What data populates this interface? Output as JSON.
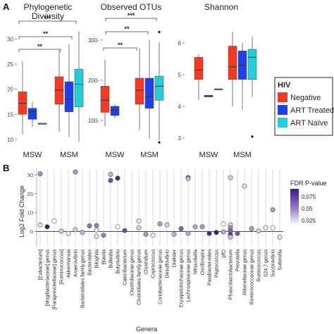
{
  "panel_labels": [
    "A",
    "B"
  ],
  "colors": {
    "negative": "#f43a21",
    "art_treated": "#1f3fe8",
    "art_naive": "#22cfd8",
    "grid": "#dcdcdc",
    "fdr_high": "#3a1a8a",
    "fdr_low": "#ffffff"
  },
  "legend_hiv": {
    "title": "HIV",
    "items": [
      {
        "label": "Negative",
        "color": "#f43a21"
      },
      {
        "label": "ART Treated",
        "color": "#1f3fe8"
      },
      {
        "label": "ART Naïve",
        "color": "#22cfd8"
      }
    ]
  },
  "chart_data": [
    {
      "type": "box",
      "title": "Phylogenetic\nDiversity",
      "categories": [
        "MSW",
        "MSM"
      ],
      "series_names": [
        "Negative",
        "ART Treated",
        "ART Naïve"
      ],
      "ylim": [
        9,
        33
      ],
      "yticks": [
        10,
        15,
        20,
        25,
        30
      ],
      "boxes": [
        {
          "cat": "MSW",
          "series": "Negative",
          "lo": 11,
          "q1": 15,
          "med": 17.2,
          "q3": 19.5,
          "hi": 25.5
        },
        {
          "cat": "MSW",
          "series": "ART Treated",
          "lo": 12.5,
          "q1": 14,
          "med": 15.5,
          "q3": 16.2,
          "hi": 17.5
        },
        {
          "cat": "MSW",
          "series": "ART Naïve",
          "lo": 13.2,
          "q1": 13.2,
          "med": 13.2,
          "q3": 13.2,
          "hi": 13.2
        },
        {
          "cat": "MSM",
          "series": "Negative",
          "lo": 11.5,
          "q1": 17,
          "med": 19.8,
          "q3": 22.5,
          "hi": 28
        },
        {
          "cat": "MSM",
          "series": "ART Treated",
          "lo": 10.5,
          "q1": 15.5,
          "med": 18,
          "q3": 21.5,
          "hi": 29
        },
        {
          "cat": "MSM",
          "series": "ART Naïve",
          "lo": 9.5,
          "q1": 16.5,
          "med": 21,
          "q3": 24,
          "hi": 31.5
        }
      ],
      "outliers": [],
      "annotations": [
        "**",
        "**",
        "***"
      ]
    },
    {
      "type": "box",
      "title": "Observed OTUs",
      "categories": [
        "MSW",
        "MSM"
      ],
      "series_names": [
        "Negative",
        "ART Treated",
        "ART Naïve"
      ],
      "ylim": [
        40,
        340
      ],
      "yticks": [
        100,
        200,
        300
      ],
      "boxes": [
        {
          "cat": "MSW",
          "series": "Negative",
          "lo": 85,
          "q1": 120,
          "med": 150,
          "q3": 185,
          "hi": 250
        },
        {
          "cat": "MSW",
          "series": "ART Treated",
          "lo": 105,
          "q1": 112,
          "med": 125,
          "q3": 135,
          "hi": 140
        },
        {
          "cat": "MSM",
          "series": "Negative",
          "lo": 75,
          "q1": 140,
          "med": 175,
          "q3": 205,
          "hi": 280
        },
        {
          "cat": "MSM",
          "series": "ART Treated",
          "lo": 55,
          "q1": 130,
          "med": 160,
          "q3": 205,
          "hi": 300
        },
        {
          "cat": "MSM",
          "series": "ART Naïve",
          "lo": 50,
          "q1": 150,
          "med": 185,
          "q3": 210,
          "hi": 295
        }
      ],
      "outliers": [
        {
          "cat": "MSM",
          "series": "ART Naïve",
          "value": 320
        },
        {
          "cat": "MSM",
          "series": "ART Naïve",
          "value": 45
        }
      ],
      "annotations": [
        "**",
        "**",
        "***"
      ]
    },
    {
      "type": "box",
      "title": "Shannon",
      "categories": [
        "MSW",
        "MSM"
      ],
      "series_names": [
        "Negative",
        "ART Treated",
        "ART Naïve"
      ],
      "ylim": [
        2.8,
        6.6
      ],
      "yticks": [
        3,
        4,
        5,
        6
      ],
      "boxes": [
        {
          "cat": "MSW",
          "series": "Negative",
          "lo": 4.2,
          "q1": 4.85,
          "med": 5.15,
          "q3": 5.55,
          "hi": 5.65
        },
        {
          "cat": "MSW",
          "series": "ART Treated",
          "lo": 4.3,
          "q1": 4.3,
          "med": 4.32,
          "q3": 4.35,
          "hi": 4.35
        },
        {
          "cat": "MSW",
          "series": "ART Naïve",
          "lo": 4.55,
          "q1": 4.55,
          "med": 4.55,
          "q3": 4.55,
          "hi": 4.55
        },
        {
          "cat": "MSM",
          "series": "Negative",
          "lo": 4.0,
          "q1": 4.85,
          "med": 5.25,
          "q3": 5.9,
          "hi": 6.35
        },
        {
          "cat": "MSM",
          "series": "ART Treated",
          "lo": 3.9,
          "q1": 4.85,
          "med": 5.3,
          "q3": 5.75,
          "hi": 6.0
        },
        {
          "cat": "MSM",
          "series": "ART Naïve",
          "lo": 4.3,
          "q1": 4.85,
          "med": 5.55,
          "q3": 5.8,
          "hi": 6.2
        }
      ],
      "outliers": [
        {
          "cat": "MSM",
          "series": "ART Naïve",
          "value": 3.05
        }
      ],
      "annotations": []
    },
    {
      "type": "scatter",
      "xlabel": "Genera",
      "ylabel": "Log2 Fold Change",
      "ylim": [
        -8,
        33
      ],
      "yticks": [
        0,
        10,
        20,
        30
      ],
      "legend_title": "FDR P-value",
      "legend_ticks": [
        0.075,
        0.05,
        0.025
      ],
      "fdr_range": [
        0.0,
        0.09
      ],
      "categories": [
        "[Eubacterium]",
        "[Mogibacteriaceae].genus",
        "[Paraprevotellaceae].genus",
        "[Ruminococcus]",
        "Akkermansia",
        "Anaerovibrio",
        "Bacteroidales.family.genus",
        "Bacteroides",
        "Bilophila",
        "Blautia",
        "Bulleidia",
        "Butyrivibrio",
        "Catenibacterium",
        "Clostridiaceae.genus",
        "Clostridiales.family.genus",
        "Clostridium",
        "Coprococcus",
        "Coriobacteriaceae.genus",
        "Desulfovibrio",
        "Dialister",
        "Erysipelotrichaceae.genus",
        "Lachnospiraceae.genus",
        "Mitsuokella",
        "Oscillospira",
        "Parabacteroides",
        "Peptococcus",
        "pft2",
        "Phascolarctobacterium",
        "Prevotella",
        "Rikenellaceae.genus",
        "Ruminococcaceae.genus",
        "Ruminococcus",
        "S24.7.genus",
        "Succinivibrio",
        "Sutterella"
      ],
      "points": [
        {
          "x": 0,
          "y": 30.5,
          "fdr": 0.045
        },
        {
          "x": 0,
          "y": 3.5,
          "fdr": 0.012
        },
        {
          "x": 1,
          "y": 2.5,
          "fdr": 0.09
        },
        {
          "x": 2,
          "y": 5.5,
          "fdr": 0.0
        },
        {
          "x": 3,
          "y": 0.2,
          "fdr": 0.02
        },
        {
          "x": 4,
          "y": -1.0,
          "fdr": 0.005
        },
        {
          "x": 5,
          "y": 31.5,
          "fdr": 0.04
        },
        {
          "x": 5,
          "y": 1.0,
          "fdr": 0.02
        },
        {
          "x": 6,
          "y": -0.5,
          "fdr": 0.03
        },
        {
          "x": 7,
          "y": 3.0,
          "fdr": 0.055
        },
        {
          "x": 8,
          "y": 3.2,
          "fdr": 0.05
        },
        {
          "x": 8,
          "y": 0.8,
          "fdr": 0.012
        },
        {
          "x": 8,
          "y": -2.5,
          "fdr": 0.01
        },
        {
          "x": 9,
          "y": -2.0,
          "fdr": 0.05
        },
        {
          "x": 10,
          "y": 30.2,
          "fdr": 0.03
        },
        {
          "x": 10,
          "y": 27.0,
          "fdr": 0.07
        },
        {
          "x": 11,
          "y": 28.2,
          "fdr": 0.085
        },
        {
          "x": 11,
          "y": 2.5,
          "fdr": 0.0
        },
        {
          "x": 12,
          "y": 0.5,
          "fdr": 0.07
        },
        {
          "x": 14,
          "y": 5.5,
          "fdr": 0.01
        },
        {
          "x": 14,
          "y": 2.0,
          "fdr": 0.02
        },
        {
          "x": 15,
          "y": -1.5,
          "fdr": 0.04
        },
        {
          "x": 16,
          "y": -2.0,
          "fdr": 0.008
        },
        {
          "x": 17,
          "y": 4.0,
          "fdr": 0.04
        },
        {
          "x": 18,
          "y": 3.5,
          "fdr": 0.02
        },
        {
          "x": 19,
          "y": -1.5,
          "fdr": 0.03
        },
        {
          "x": 20,
          "y": 1.5,
          "fdr": 0.06
        },
        {
          "x": 21,
          "y": 28.5,
          "fdr": 0.09
        },
        {
          "x": 21,
          "y": 28.0,
          "fdr": 0.03
        },
        {
          "x": 21,
          "y": -1.0,
          "fdr": 0.035
        },
        {
          "x": 22,
          "y": 2.5,
          "fdr": 0.035
        },
        {
          "x": 23,
          "y": 2.5,
          "fdr": 0.04
        },
        {
          "x": 24,
          "y": -1.0,
          "fdr": 0.085
        },
        {
          "x": 25,
          "y": -0.5,
          "fdr": 0.09
        },
        {
          "x": 26,
          "y": -0.2,
          "fdr": 0.035
        },
        {
          "x": 26,
          "y": 4.0,
          "fdr": 0.0
        },
        {
          "x": 27,
          "y": 28.5,
          "fdr": 0.02
        },
        {
          "x": 27,
          "y": 3.5,
          "fdr": 0.015
        },
        {
          "x": 27,
          "y": 2.0,
          "fdr": 0.045
        },
        {
          "x": 27,
          "y": 0.5,
          "fdr": 0.06
        },
        {
          "x": 27,
          "y": -1.5,
          "fdr": 0.075
        },
        {
          "x": 27,
          "y": -3.0,
          "fdr": 0.025
        },
        {
          "x": 28,
          "y": -1.0,
          "fdr": 0.065
        },
        {
          "x": 29,
          "y": 24.0,
          "fdr": 0.015
        },
        {
          "x": 30,
          "y": 1.5,
          "fdr": 0.04
        },
        {
          "x": 31,
          "y": 0.3,
          "fdr": 0.02
        },
        {
          "x": 32,
          "y": 2.0,
          "fdr": 0.01
        },
        {
          "x": 33,
          "y": 11.5,
          "fdr": 0.04
        },
        {
          "x": 33,
          "y": 2.0,
          "fdr": 0.0
        },
        {
          "x": 34,
          "y": -3.0,
          "fdr": 0.015
        }
      ]
    }
  ]
}
